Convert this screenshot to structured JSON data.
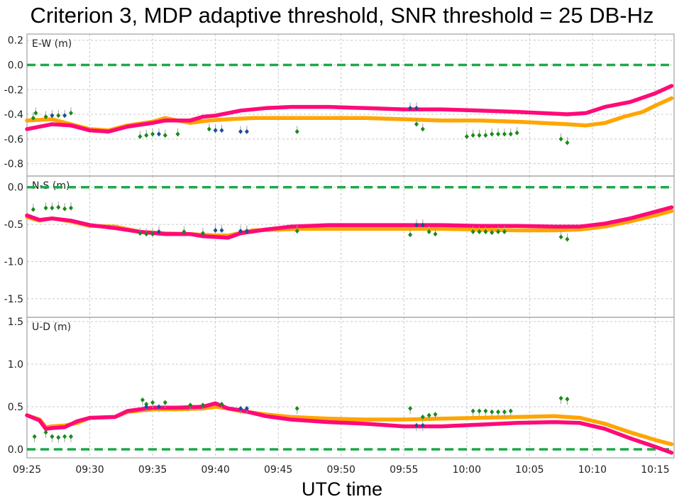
{
  "title": "Criterion 3, MDP adaptive threshold, SNR threshold = 25 DB-Hz",
  "xlabel": "UTC time",
  "colors": {
    "pink": "#ff0a78",
    "orange": "#ffa500",
    "green_marker": "#1a8a1a",
    "blue_marker": "#1a4f9a",
    "zero_line": "#1fa84a",
    "grid": "#c8c8c8",
    "spike": "#a0a0a0"
  },
  "chart_data": [
    {
      "type": "scatter",
      "panel_label": "E-W (m)",
      "ylim": [
        -0.9,
        0.25
      ],
      "yticks": [
        0.2,
        0.0,
        -0.2,
        -0.4,
        -0.6,
        -0.8
      ],
      "ytick_labels": [
        "0.2",
        "0.0",
        "-0.2",
        "-0.4",
        "-0.6",
        "-0.8"
      ],
      "reference_line": 0.0,
      "grid": true,
      "series": [
        {
          "color_key": "orange",
          "points": [
            [
              0,
              -0.45
            ],
            [
              2,
              -0.44
            ],
            [
              3.5,
              -0.48
            ],
            [
              5,
              -0.52
            ],
            [
              6.5,
              -0.53
            ],
            [
              8,
              -0.49
            ],
            [
              10,
              -0.46
            ],
            [
              11,
              -0.43
            ],
            [
              13,
              -0.47
            ],
            [
              14.5,
              -0.45
            ],
            [
              16,
              -0.44
            ],
            [
              18,
              -0.43
            ],
            [
              21,
              -0.43
            ],
            [
              24,
              -0.43
            ],
            [
              27,
              -0.43
            ],
            [
              30,
              -0.44
            ],
            [
              33,
              -0.45
            ],
            [
              36,
              -0.45
            ],
            [
              39,
              -0.46
            ],
            [
              41,
              -0.47
            ],
            [
              43,
              -0.48
            ],
            [
              44.5,
              -0.49
            ],
            [
              46,
              -0.47
            ],
            [
              47.5,
              -0.42
            ],
            [
              49,
              -0.38
            ],
            [
              50,
              -0.33
            ],
            [
              51.3,
              -0.27
            ]
          ]
        },
        {
          "color_key": "pink",
          "points": [
            [
              0,
              -0.52
            ],
            [
              1,
              -0.5
            ],
            [
              2,
              -0.48
            ],
            [
              3.5,
              -0.49
            ],
            [
              5,
              -0.53
            ],
            [
              6.5,
              -0.54
            ],
            [
              8,
              -0.5
            ],
            [
              10,
              -0.47
            ],
            [
              11,
              -0.45
            ],
            [
              13,
              -0.45
            ],
            [
              14,
              -0.42
            ],
            [
              15,
              -0.41
            ],
            [
              17,
              -0.37
            ],
            [
              19,
              -0.35
            ],
            [
              21,
              -0.34
            ],
            [
              24,
              -0.34
            ],
            [
              27,
              -0.35
            ],
            [
              30,
              -0.36
            ],
            [
              33,
              -0.36
            ],
            [
              36,
              -0.37
            ],
            [
              39,
              -0.38
            ],
            [
              41,
              -0.39
            ],
            [
              43,
              -0.4
            ],
            [
              44.5,
              -0.39
            ],
            [
              46,
              -0.34
            ],
            [
              48,
              -0.3
            ],
            [
              50,
              -0.23
            ],
            [
              51.3,
              -0.17
            ]
          ]
        }
      ],
      "markers_green": [
        [
          0.5,
          -0.43
        ],
        [
          0.7,
          -0.39
        ],
        [
          1.5,
          -0.42
        ],
        [
          2.5,
          -0.41
        ],
        [
          3.5,
          -0.39
        ],
        [
          9,
          -0.58
        ],
        [
          9.5,
          -0.57
        ],
        [
          10,
          -0.56
        ],
        [
          11,
          -0.57
        ],
        [
          12,
          -0.56
        ],
        [
          14.5,
          -0.52
        ],
        [
          21.5,
          -0.54
        ],
        [
          31,
          -0.48
        ],
        [
          31.5,
          -0.52
        ],
        [
          35,
          -0.58
        ],
        [
          35.5,
          -0.57
        ],
        [
          36,
          -0.57
        ],
        [
          36.5,
          -0.57
        ],
        [
          37,
          -0.56
        ],
        [
          37.5,
          -0.56
        ],
        [
          38,
          -0.56
        ],
        [
          38.5,
          -0.56
        ],
        [
          39,
          -0.55
        ],
        [
          42.5,
          -0.6
        ],
        [
          43,
          -0.63
        ]
      ],
      "markers_blue": [
        [
          2,
          -0.41
        ],
        [
          3,
          -0.41
        ],
        [
          10.5,
          -0.56
        ],
        [
          15,
          -0.53
        ],
        [
          15.5,
          -0.53
        ],
        [
          17,
          -0.54
        ],
        [
          17.5,
          -0.54
        ],
        [
          30.5,
          -0.35
        ],
        [
          31,
          -0.35
        ]
      ]
    },
    {
      "type": "scatter",
      "panel_label": "N-S (m)",
      "ylim": [
        -1.75,
        0.15
      ],
      "yticks": [
        0.0,
        -0.5,
        -1.0,
        -1.5
      ],
      "ytick_labels": [
        "0.0",
        "-0.5",
        "-1.0",
        "-1.5"
      ],
      "reference_line": 0.0,
      "grid": true,
      "series": [
        {
          "color_key": "orange",
          "points": [
            [
              0,
              -0.4
            ],
            [
              1,
              -0.45
            ],
            [
              2,
              -0.42
            ],
            [
              3.5,
              -0.46
            ],
            [
              5,
              -0.52
            ],
            [
              7,
              -0.53
            ],
            [
              9,
              -0.6
            ],
            [
              11,
              -0.62
            ],
            [
              13,
              -0.63
            ],
            [
              15,
              -0.65
            ],
            [
              16,
              -0.65
            ],
            [
              18,
              -0.58
            ],
            [
              20,
              -0.57
            ],
            [
              22,
              -0.56
            ],
            [
              24,
              -0.56
            ],
            [
              27,
              -0.56
            ],
            [
              30,
              -0.56
            ],
            [
              33,
              -0.56
            ],
            [
              36,
              -0.57
            ],
            [
              39,
              -0.58
            ],
            [
              42,
              -0.58
            ],
            [
              44,
              -0.57
            ],
            [
              46,
              -0.53
            ],
            [
              48,
              -0.46
            ],
            [
              50,
              -0.38
            ],
            [
              51.3,
              -0.32
            ]
          ]
        },
        {
          "color_key": "pink",
          "points": [
            [
              0,
              -0.38
            ],
            [
              1,
              -0.44
            ],
            [
              2,
              -0.42
            ],
            [
              3.5,
              -0.45
            ],
            [
              5,
              -0.51
            ],
            [
              7,
              -0.55
            ],
            [
              9,
              -0.6
            ],
            [
              11,
              -0.63
            ],
            [
              13,
              -0.63
            ],
            [
              14,
              -0.66
            ],
            [
              16,
              -0.68
            ],
            [
              17,
              -0.62
            ],
            [
              19,
              -0.57
            ],
            [
              21,
              -0.53
            ],
            [
              24,
              -0.51
            ],
            [
              27,
              -0.51
            ],
            [
              30,
              -0.51
            ],
            [
              33,
              -0.51
            ],
            [
              36,
              -0.52
            ],
            [
              39,
              -0.52
            ],
            [
              42,
              -0.53
            ],
            [
              44,
              -0.53
            ],
            [
              46,
              -0.49
            ],
            [
              48,
              -0.42
            ],
            [
              50,
              -0.33
            ],
            [
              51.3,
              -0.27
            ]
          ]
        }
      ],
      "markers_green": [
        [
          0.5,
          -0.3
        ],
        [
          1.5,
          -0.28
        ],
        [
          2,
          -0.28
        ],
        [
          2.5,
          -0.27
        ],
        [
          3,
          -0.29
        ],
        [
          3.5,
          -0.28
        ],
        [
          9,
          -0.62
        ],
        [
          9.5,
          -0.63
        ],
        [
          10,
          -0.63
        ],
        [
          12.5,
          -0.6
        ],
        [
          14,
          -0.62
        ],
        [
          17.5,
          -0.6
        ],
        [
          21.5,
          -0.59
        ],
        [
          30.5,
          -0.64
        ],
        [
          32,
          -0.6
        ],
        [
          32.5,
          -0.63
        ],
        [
          35.5,
          -0.6
        ],
        [
          36,
          -0.6
        ],
        [
          36.5,
          -0.6
        ],
        [
          37,
          -0.61
        ],
        [
          37.5,
          -0.6
        ],
        [
          38,
          -0.6
        ],
        [
          42.5,
          -0.67
        ],
        [
          43,
          -0.7
        ]
      ],
      "markers_blue": [
        [
          10.5,
          -0.6
        ],
        [
          15,
          -0.58
        ],
        [
          15.5,
          -0.58
        ],
        [
          17,
          -0.59
        ],
        [
          17.5,
          -0.59
        ],
        [
          31,
          -0.51
        ],
        [
          31.5,
          -0.51
        ]
      ]
    },
    {
      "type": "scatter",
      "panel_label": "U-D (m)",
      "ylim": [
        -0.1,
        1.55
      ],
      "yticks": [
        1.5,
        1.0,
        0.5,
        0.0
      ],
      "ytick_labels": [
        "1.5",
        "1.0",
        "0.5",
        "0.0"
      ],
      "reference_line": 0.0,
      "grid": true,
      "series": [
        {
          "color_key": "orange",
          "points": [
            [
              0,
              0.4
            ],
            [
              1,
              0.35
            ],
            [
              1.5,
              0.26
            ],
            [
              2,
              0.27
            ],
            [
              3,
              0.28
            ],
            [
              4,
              0.31
            ],
            [
              5,
              0.37
            ],
            [
              7,
              0.38
            ],
            [
              8,
              0.44
            ],
            [
              10,
              0.47
            ],
            [
              12,
              0.47
            ],
            [
              14,
              0.48
            ],
            [
              15,
              0.5
            ],
            [
              16,
              0.48
            ],
            [
              17,
              0.45
            ],
            [
              19,
              0.41
            ],
            [
              21,
              0.38
            ],
            [
              24,
              0.36
            ],
            [
              27,
              0.35
            ],
            [
              30,
              0.35
            ],
            [
              33,
              0.36
            ],
            [
              36,
              0.37
            ],
            [
              39,
              0.38
            ],
            [
              42,
              0.39
            ],
            [
              44,
              0.37
            ],
            [
              46,
              0.3
            ],
            [
              48,
              0.2
            ],
            [
              50,
              0.11
            ],
            [
              51.3,
              0.06
            ]
          ]
        },
        {
          "color_key": "pink",
          "points": [
            [
              0,
              0.4
            ],
            [
              1,
              0.34
            ],
            [
              1.5,
              0.24
            ],
            [
              2,
              0.25
            ],
            [
              3,
              0.26
            ],
            [
              4,
              0.33
            ],
            [
              5,
              0.37
            ],
            [
              7,
              0.38
            ],
            [
              8,
              0.45
            ],
            [
              10,
              0.49
            ],
            [
              12,
              0.49
            ],
            [
              14,
              0.5
            ],
            [
              15,
              0.54
            ],
            [
              16,
              0.48
            ],
            [
              17,
              0.46
            ],
            [
              19,
              0.39
            ],
            [
              21,
              0.35
            ],
            [
              24,
              0.32
            ],
            [
              27,
              0.3
            ],
            [
              30,
              0.27
            ],
            [
              33,
              0.27
            ],
            [
              36,
              0.29
            ],
            [
              39,
              0.31
            ],
            [
              42,
              0.32
            ],
            [
              44,
              0.31
            ],
            [
              46,
              0.24
            ],
            [
              48,
              0.13
            ],
            [
              50,
              0.03
            ],
            [
              51.3,
              -0.04
            ]
          ]
        }
      ],
      "markers_green": [
        [
          0.6,
          0.15
        ],
        [
          1.5,
          0.2
        ],
        [
          2,
          0.15
        ],
        [
          2.5,
          0.14
        ],
        [
          3,
          0.15
        ],
        [
          3.5,
          0.15
        ],
        [
          9.2,
          0.58
        ],
        [
          9.5,
          0.53
        ],
        [
          10,
          0.55
        ],
        [
          11,
          0.55
        ],
        [
          13,
          0.52
        ],
        [
          14,
          0.52
        ],
        [
          15.5,
          0.53
        ],
        [
          21.5,
          0.48
        ],
        [
          30.5,
          0.48
        ],
        [
          31.5,
          0.38
        ],
        [
          32,
          0.4
        ],
        [
          32.5,
          0.41
        ],
        [
          35.5,
          0.45
        ],
        [
          36,
          0.45
        ],
        [
          36.5,
          0.45
        ],
        [
          37,
          0.44
        ],
        [
          37.5,
          0.44
        ],
        [
          38,
          0.44
        ],
        [
          38.5,
          0.45
        ],
        [
          42.5,
          0.6
        ],
        [
          43,
          0.59
        ]
      ],
      "markers_blue": [
        [
          9.5,
          0.5
        ],
        [
          10.5,
          0.5
        ],
        [
          17,
          0.48
        ],
        [
          17.5,
          0.48
        ],
        [
          31,
          0.28
        ],
        [
          31.5,
          0.28
        ]
      ]
    }
  ],
  "x_axis": {
    "min": 0,
    "max": 51.5,
    "ticks": [
      0,
      5,
      10,
      15,
      20,
      25,
      30,
      35,
      40,
      45,
      50
    ],
    "tick_labels": [
      "09:25",
      "09:30",
      "09:35",
      "09:40",
      "09:45",
      "09:50",
      "09:55",
      "10:00",
      "10:05",
      "10:10",
      "10:15"
    ]
  }
}
